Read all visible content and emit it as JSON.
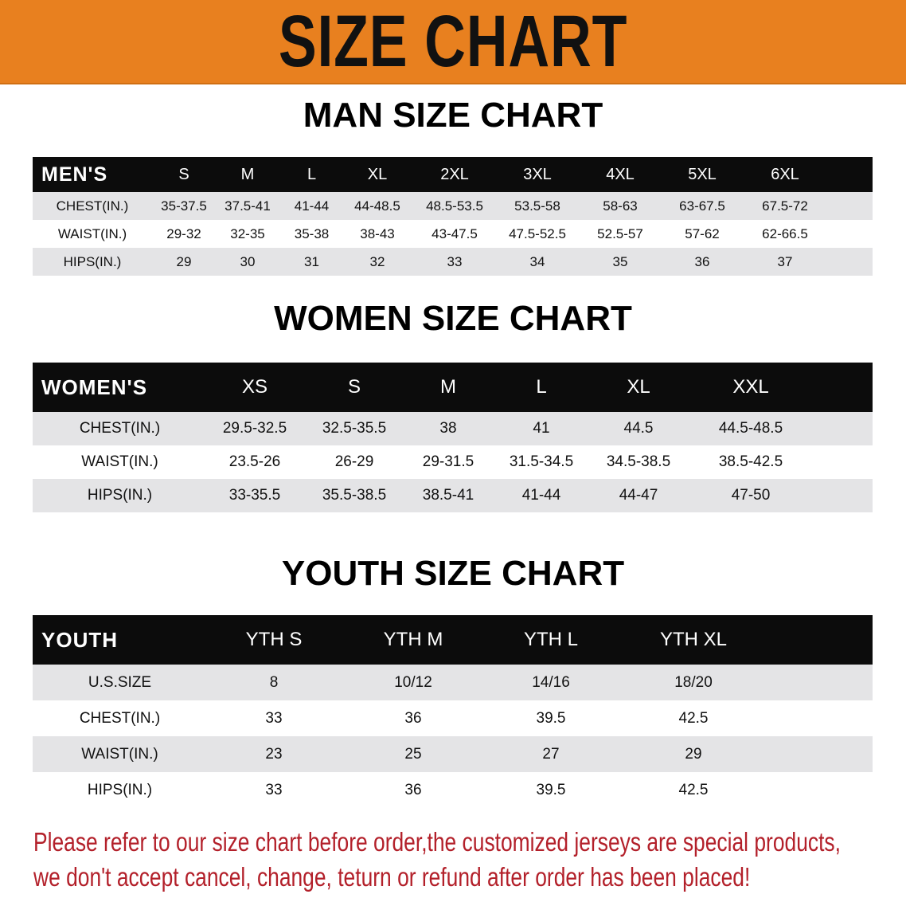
{
  "banner_title": "SIZE CHART",
  "accent_color": "#e8801f",
  "men": {
    "title": "MAN SIZE CHART",
    "header": [
      "MEN'S",
      "S",
      "M",
      "L",
      "XL",
      "2XL",
      "3XL",
      "4XL",
      "5XL",
      "6XL"
    ],
    "rows": [
      [
        "CHEST(IN.)",
        "35-37.5",
        "37.5-41",
        "41-44",
        "44-48.5",
        "48.5-53.5",
        "53.5-58",
        "58-63",
        "63-67.5",
        "67.5-72"
      ],
      [
        "WAIST(IN.)",
        "29-32",
        "32-35",
        "35-38",
        "38-43",
        "43-47.5",
        "47.5-52.5",
        "52.5-57",
        "57-62",
        "62-66.5"
      ],
      [
        "HIPS(IN.)",
        "29",
        "30",
        "31",
        "32",
        "33",
        "34",
        "35",
        "36",
        "37"
      ]
    ]
  },
  "women": {
    "title": "WOMEN SIZE CHART",
    "header": [
      "WOMEN'S",
      "XS",
      "S",
      "M",
      "L",
      "XL",
      "XXL"
    ],
    "rows": [
      [
        "CHEST(IN.)",
        "29.5-32.5",
        "32.5-35.5",
        "38",
        "41",
        "44.5",
        "44.5-48.5"
      ],
      [
        "WAIST(IN.)",
        "23.5-26",
        "26-29",
        "29-31.5",
        "31.5-34.5",
        "34.5-38.5",
        "38.5-42.5"
      ],
      [
        "HIPS(IN.)",
        "33-35.5",
        "35.5-38.5",
        "38.5-41",
        "41-44",
        "44-47",
        "47-50"
      ]
    ]
  },
  "youth": {
    "title": "YOUTH SIZE CHART",
    "header": [
      "YOUTH",
      "YTH S",
      "YTH M",
      "YTH L",
      "YTH XL"
    ],
    "rows": [
      [
        "U.S.SIZE",
        "8",
        "10/12",
        "14/16",
        "18/20"
      ],
      [
        "CHEST(IN.)",
        "33",
        "36",
        "39.5",
        "42.5"
      ],
      [
        "WAIST(IN.)",
        "23",
        "25",
        "27",
        "29"
      ],
      [
        "HIPS(IN.)",
        "33",
        "36",
        "39.5",
        "42.5"
      ]
    ]
  },
  "notice": [
    "Please refer to our size chart before order,the customized jerseys are special products,",
    "we don't accept cancel, change, teturn or refund after order has been placed!"
  ]
}
